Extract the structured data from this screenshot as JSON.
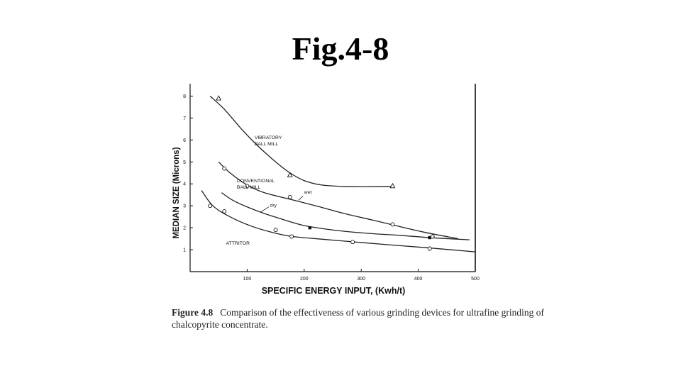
{
  "slide": {
    "title": "Fig.4-8"
  },
  "caption": {
    "label": "Figure 4.8",
    "text": "Comparison of the effectiveness of various grinding devices for ultrafine grinding of chalcopyrite concentrate."
  },
  "chart_data": {
    "type": "line",
    "xlabel": "SPECIFIC ENERGY INPUT, (Kwh/t)",
    "ylabel": "MEDIAN SIZE (Microns)",
    "xlim": [
      0,
      500
    ],
    "ylim": [
      0,
      8.5
    ],
    "x_ticks": [
      100,
      200,
      300,
      400,
      500
    ],
    "y_ticks": [
      1,
      2,
      3,
      4,
      5,
      6,
      7,
      8
    ],
    "grid": false,
    "series": [
      {
        "name": "VIBRATORY BALL MILL",
        "label_lines": [
          "VIBRATORY",
          "BALL MILL"
        ],
        "marker": "triangle",
        "points": [
          [
            50,
            7.9
          ],
          [
            175,
            4.4
          ],
          [
            355,
            3.9
          ]
        ],
        "curve": [
          [
            35,
            8.0
          ],
          [
            60,
            7.4
          ],
          [
            90,
            6.5
          ],
          [
            120,
            5.7
          ],
          [
            150,
            5.0
          ],
          [
            175,
            4.5
          ],
          [
            200,
            4.15
          ],
          [
            230,
            3.95
          ],
          [
            270,
            3.88
          ],
          [
            310,
            3.87
          ],
          [
            355,
            3.88
          ]
        ]
      },
      {
        "name": "CONVENTIONAL BALL MILL wet",
        "label_lines": [
          "CONVENTIONAL",
          "BALL MILL"
        ],
        "annotation": "wet",
        "marker": "circle",
        "points": [
          [
            60,
            4.7
          ],
          [
            100,
            3.9
          ],
          [
            175,
            3.4
          ],
          [
            355,
            2.15
          ],
          [
            425,
            1.6
          ]
        ],
        "curve": [
          [
            50,
            5.0
          ],
          [
            70,
            4.5
          ],
          [
            100,
            3.95
          ],
          [
            130,
            3.6
          ],
          [
            175,
            3.3
          ],
          [
            220,
            3.0
          ],
          [
            270,
            2.65
          ],
          [
            320,
            2.35
          ],
          [
            360,
            2.1
          ],
          [
            410,
            1.8
          ],
          [
            470,
            1.5
          ]
        ]
      },
      {
        "name": "CONVENTIONAL BALL MILL dry",
        "annotation": "dry",
        "marker": "square",
        "points": [
          [
            210,
            2.0
          ],
          [
            420,
            1.55
          ]
        ],
        "curve": [
          [
            55,
            3.6
          ],
          [
            75,
            3.25
          ],
          [
            100,
            2.95
          ],
          [
            130,
            2.65
          ],
          [
            160,
            2.4
          ],
          [
            200,
            2.1
          ],
          [
            250,
            1.9
          ],
          [
            310,
            1.75
          ],
          [
            370,
            1.65
          ],
          [
            420,
            1.55
          ],
          [
            490,
            1.45
          ]
        ]
      },
      {
        "name": "ATTRITOR",
        "label_lines": [
          "ATTRITOR"
        ],
        "marker": "circle",
        "points": [
          [
            35,
            3.0
          ],
          [
            60,
            2.75
          ],
          [
            150,
            1.9
          ],
          [
            178,
            1.6
          ],
          [
            285,
            1.35
          ],
          [
            420,
            1.05
          ]
        ],
        "curve": [
          [
            20,
            3.7
          ],
          [
            40,
            3.0
          ],
          [
            70,
            2.5
          ],
          [
            110,
            2.05
          ],
          [
            150,
            1.75
          ],
          [
            180,
            1.6
          ],
          [
            230,
            1.48
          ],
          [
            290,
            1.35
          ],
          [
            350,
            1.22
          ],
          [
            420,
            1.08
          ],
          [
            500,
            0.9
          ]
        ]
      }
    ]
  }
}
